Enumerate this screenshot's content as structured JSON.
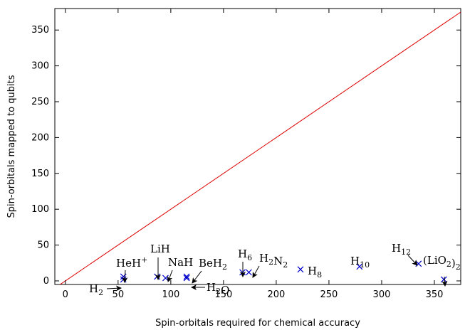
{
  "chart_data": {
    "type": "scatter",
    "xlabel": "Spin-orbitals required for chemical accuracy",
    "ylabel": "Spin-orbitals mapped to qubits",
    "xlim": [
      -10,
      375
    ],
    "ylim": [
      -5,
      380
    ],
    "xticks": [
      0,
      50,
      100,
      150,
      200,
      250,
      300,
      350
    ],
    "yticks": [
      0,
      50,
      100,
      150,
      200,
      250,
      300,
      350
    ],
    "grid": false,
    "reference_line": {
      "x": [
        -10,
        375
      ],
      "y": [
        -10,
        375
      ],
      "color": "#dd0000"
    },
    "marker_color": "#0000cc",
    "points": [
      {
        "x": 55,
        "y": 2,
        "label": "H2"
      },
      {
        "x": 55,
        "y": 6,
        "label": "HeH+"
      },
      {
        "x": 87,
        "y": 6,
        "label": "LiH"
      },
      {
        "x": 95,
        "y": 4,
        "label": "NaH"
      },
      {
        "x": 115,
        "y": 6,
        "label": "BeH2"
      },
      {
        "x": 115,
        "y": 4,
        "label": "H2O"
      },
      {
        "x": 168,
        "y": 12,
        "label": "H6"
      },
      {
        "x": 174,
        "y": 12,
        "label": "H2N2"
      },
      {
        "x": 223,
        "y": 16,
        "label": "H8"
      },
      {
        "x": 279,
        "y": 20,
        "label": "H10"
      },
      {
        "x": 335,
        "y": 24,
        "label": "H12"
      },
      {
        "x": 359,
        "y": 2,
        "label": "(LiO2)2"
      }
    ]
  }
}
